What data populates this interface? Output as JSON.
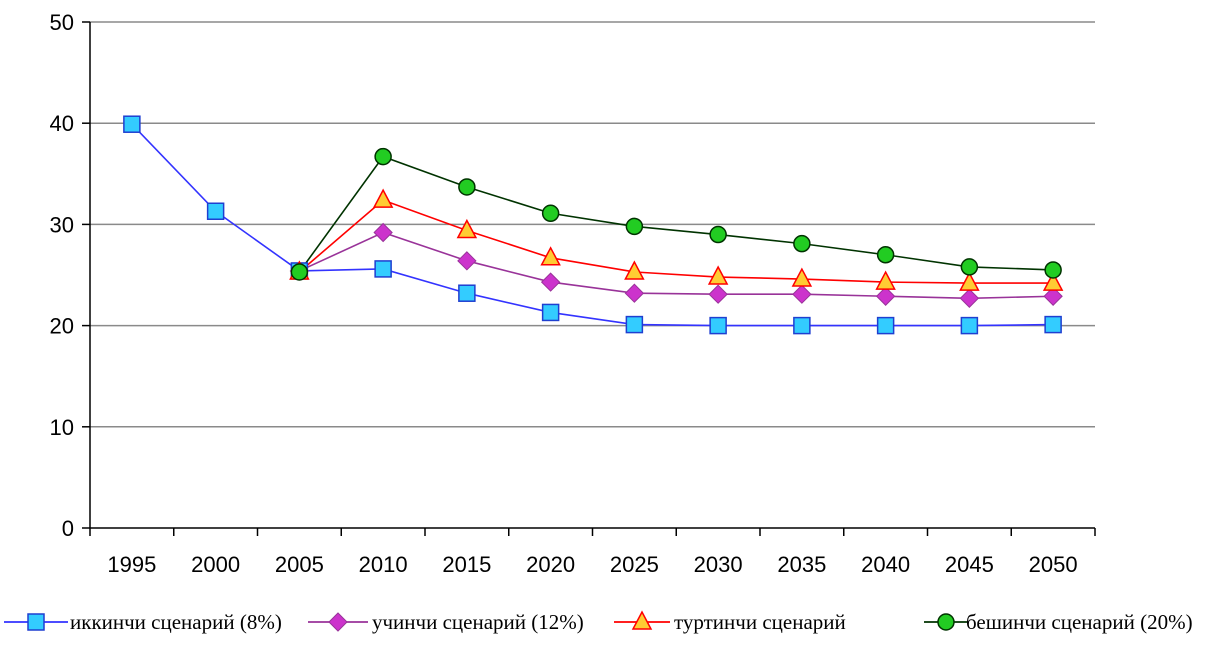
{
  "chart_data": {
    "type": "line",
    "title": "",
    "xlabel": "",
    "ylabel": "",
    "categories": [
      "1995",
      "2000",
      "2005",
      "2010",
      "2015",
      "2020",
      "2025",
      "2030",
      "2035",
      "2040",
      "2045",
      "2050"
    ],
    "ylim": [
      0,
      50
    ],
    "yticks": [
      0,
      10,
      20,
      30,
      40,
      50
    ],
    "grid": true,
    "legend_position": "bottom",
    "series": [
      {
        "name": "иккинчи сценарий (8%)",
        "marker": "square",
        "line_color": "#3333ff",
        "marker_fill": "#33ccff",
        "values": [
          39.9,
          31.3,
          25.4,
          25.6,
          23.2,
          21.3,
          20.1,
          20.0,
          20.0,
          20.0,
          20.0,
          20.1
        ]
      },
      {
        "name": "учинчи сценарий (12%)",
        "marker": "diamond",
        "line_color": "#993399",
        "marker_fill": "#cc33cc",
        "values": [
          null,
          null,
          25.4,
          29.2,
          26.4,
          24.3,
          23.2,
          23.1,
          23.1,
          22.9,
          22.7,
          22.9
        ]
      },
      {
        "name": "туртинчи сценарий",
        "marker": "triangle",
        "line_color": "#ff0000",
        "marker_fill": "#ffcc33",
        "values": [
          null,
          null,
          25.3,
          32.4,
          29.4,
          26.7,
          25.3,
          24.8,
          24.6,
          24.3,
          24.2,
          24.2
        ]
      },
      {
        "name": "бешинчи сценарий (20%)",
        "marker": "circle",
        "line_color": "#003300",
        "marker_fill": "#22cc22",
        "values": [
          null,
          null,
          25.3,
          36.7,
          33.7,
          31.1,
          29.8,
          29.0,
          28.1,
          27.0,
          25.8,
          25.5
        ]
      }
    ]
  }
}
